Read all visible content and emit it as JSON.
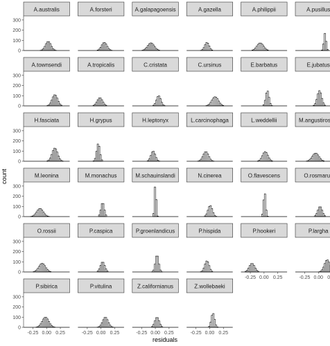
{
  "chart_data": {
    "type": "bar",
    "subtype": "faceted-histogram",
    "xlabel": "residuals",
    "ylabel": "count",
    "x_ticks": [
      -0.25,
      0.0,
      0.25
    ],
    "x_tick_labels": [
      "-0.25",
      "0.00",
      "0.25"
    ],
    "y_ticks": [
      0,
      100,
      200,
      300
    ],
    "y_tick_labels": [
      "0",
      "100",
      "200",
      "300"
    ],
    "ylim": [
      0,
      340
    ],
    "xlim": [
      -0.42,
      0.42
    ],
    "bin_width": 0.025,
    "grid": false,
    "colors": {
      "strip_fill": "#d9d9d9",
      "strip_border": "#333333",
      "bar_fill": "#ffffff",
      "bar_stroke": "#000000"
    },
    "facets": [
      {
        "name": "A.australis",
        "center": 0.03,
        "spread": 0.05,
        "peak": 90
      },
      {
        "name": "A.forsteri",
        "center": 0.06,
        "spread": 0.05,
        "peak": 80
      },
      {
        "name": "A.galapagoensis",
        "center": -0.08,
        "spread": 0.06,
        "peak": 75
      },
      {
        "name": "A.gazella",
        "center": -0.05,
        "spread": 0.04,
        "peak": 80
      },
      {
        "name": "A.philippii",
        "center": -0.07,
        "spread": 0.06,
        "peak": 75
      },
      {
        "name": "A.pusillus",
        "center": 0.12,
        "spread": 0.02,
        "peak": 170
      },
      {
        "name": "A.townsendi",
        "center": 0.15,
        "spread": 0.05,
        "peak": 110
      },
      {
        "name": "A.tropicalis",
        "center": -0.02,
        "spread": 0.05,
        "peak": 80
      },
      {
        "name": "C.cristata",
        "center": 0.06,
        "spread": 0.04,
        "peak": 100
      },
      {
        "name": "C.ursinus",
        "center": 0.1,
        "spread": 0.06,
        "peak": 90
      },
      {
        "name": "E.barbatus",
        "center": 0.06,
        "spread": 0.03,
        "peak": 150
      },
      {
        "name": "E.jubatus",
        "center": 0.02,
        "spread": 0.04,
        "peak": 150
      },
      {
        "name": "H.fasciata",
        "center": 0.15,
        "spread": 0.05,
        "peak": 130
      },
      {
        "name": "H.grypus",
        "center": -0.05,
        "spread": 0.03,
        "peak": 175
      },
      {
        "name": "H.leptonyx",
        "center": -0.04,
        "spread": 0.04,
        "peak": 100
      },
      {
        "name": "L.carcinophaga",
        "center": -0.07,
        "spread": 0.05,
        "peak": 95
      },
      {
        "name": "L.weddellii",
        "center": 0.02,
        "spread": 0.05,
        "peak": 95
      },
      {
        "name": "M.angustirostris",
        "center": -0.05,
        "spread": 0.06,
        "peak": 80
      },
      {
        "name": "M.leonina",
        "center": -0.12,
        "spread": 0.06,
        "peak": 80
      },
      {
        "name": "M.monachus",
        "center": 0.03,
        "spread": 0.03,
        "peak": 140
      },
      {
        "name": "M.schauinslandi",
        "center": 0.0,
        "spread": 0.015,
        "peak": 330
      },
      {
        "name": "N.cinerea",
        "center": 0.01,
        "spread": 0.04,
        "peak": 110
      },
      {
        "name": "O.flavescens",
        "center": 0.01,
        "spread": 0.02,
        "peak": 240
      },
      {
        "name": "O.rosmarus",
        "center": 0.03,
        "spread": 0.04,
        "peak": 100
      },
      {
        "name": "O.rossii",
        "center": -0.08,
        "spread": 0.06,
        "peak": 85
      },
      {
        "name": "P.caspica",
        "center": 0.03,
        "spread": 0.04,
        "peak": 100
      },
      {
        "name": "P.groenlandicus",
        "center": 0.03,
        "spread": 0.03,
        "peak": 170
      },
      {
        "name": "P.hispida",
        "center": -0.05,
        "spread": 0.04,
        "peak": 110
      },
      {
        "name": "P.hookeri",
        "center": -0.22,
        "spread": 0.05,
        "peak": 85
      },
      {
        "name": "P.largha",
        "center": 0.16,
        "spread": 0.05,
        "peak": 120
      },
      {
        "name": "P.sibirica",
        "center": -0.02,
        "spread": 0.06,
        "peak": 100
      },
      {
        "name": "P.vitulina",
        "center": 0.08,
        "spread": 0.05,
        "peak": 100
      },
      {
        "name": "Z.californianus",
        "center": 0.03,
        "spread": 0.04,
        "peak": 100
      },
      {
        "name": "Z.wollebaeki",
        "center": 0.06,
        "spread": 0.03,
        "peak": 140
      }
    ]
  }
}
